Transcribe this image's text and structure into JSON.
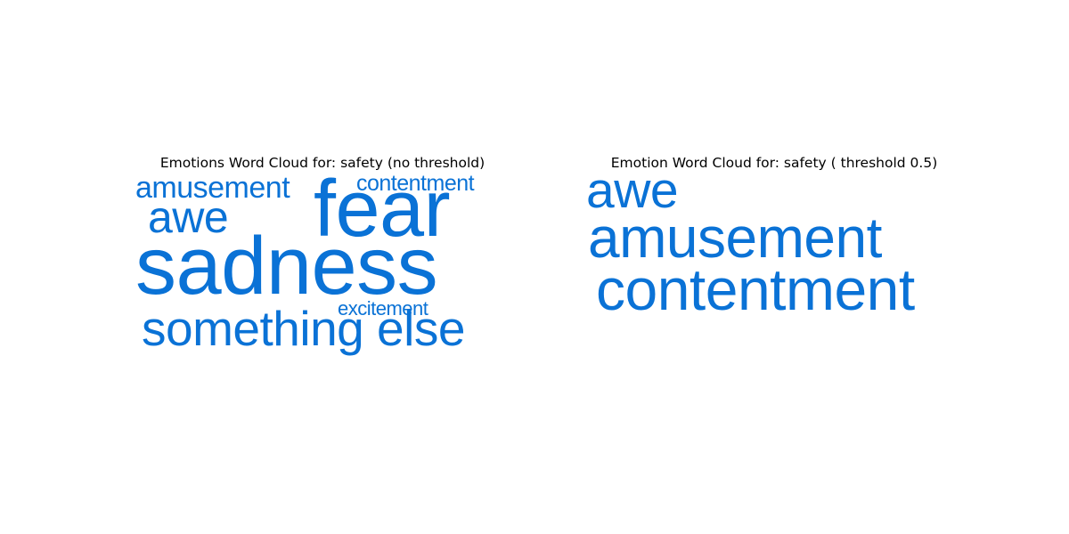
{
  "chart_data": [
    {
      "type": "wordcloud",
      "title": "Emotions Word Cloud for: safety (no threshold)",
      "color": "#0a72d6",
      "words": [
        {
          "text": "sadness",
          "rank": 1
        },
        {
          "text": "fear",
          "rank": 2
        },
        {
          "text": "something else",
          "rank": 3
        },
        {
          "text": "awe",
          "rank": 4
        },
        {
          "text": "amusement",
          "rank": 5
        },
        {
          "text": "contentment",
          "rank": 6
        },
        {
          "text": "excitement",
          "rank": 7
        }
      ]
    },
    {
      "type": "wordcloud",
      "title": "Emotion Word Cloud for: safety ( threshold 0.5)",
      "color": "#0a72d6",
      "words": [
        {
          "text": "awe",
          "rank": 3
        },
        {
          "text": "amusement",
          "rank": 2
        },
        {
          "text": "contentment",
          "rank": 1
        }
      ]
    }
  ]
}
